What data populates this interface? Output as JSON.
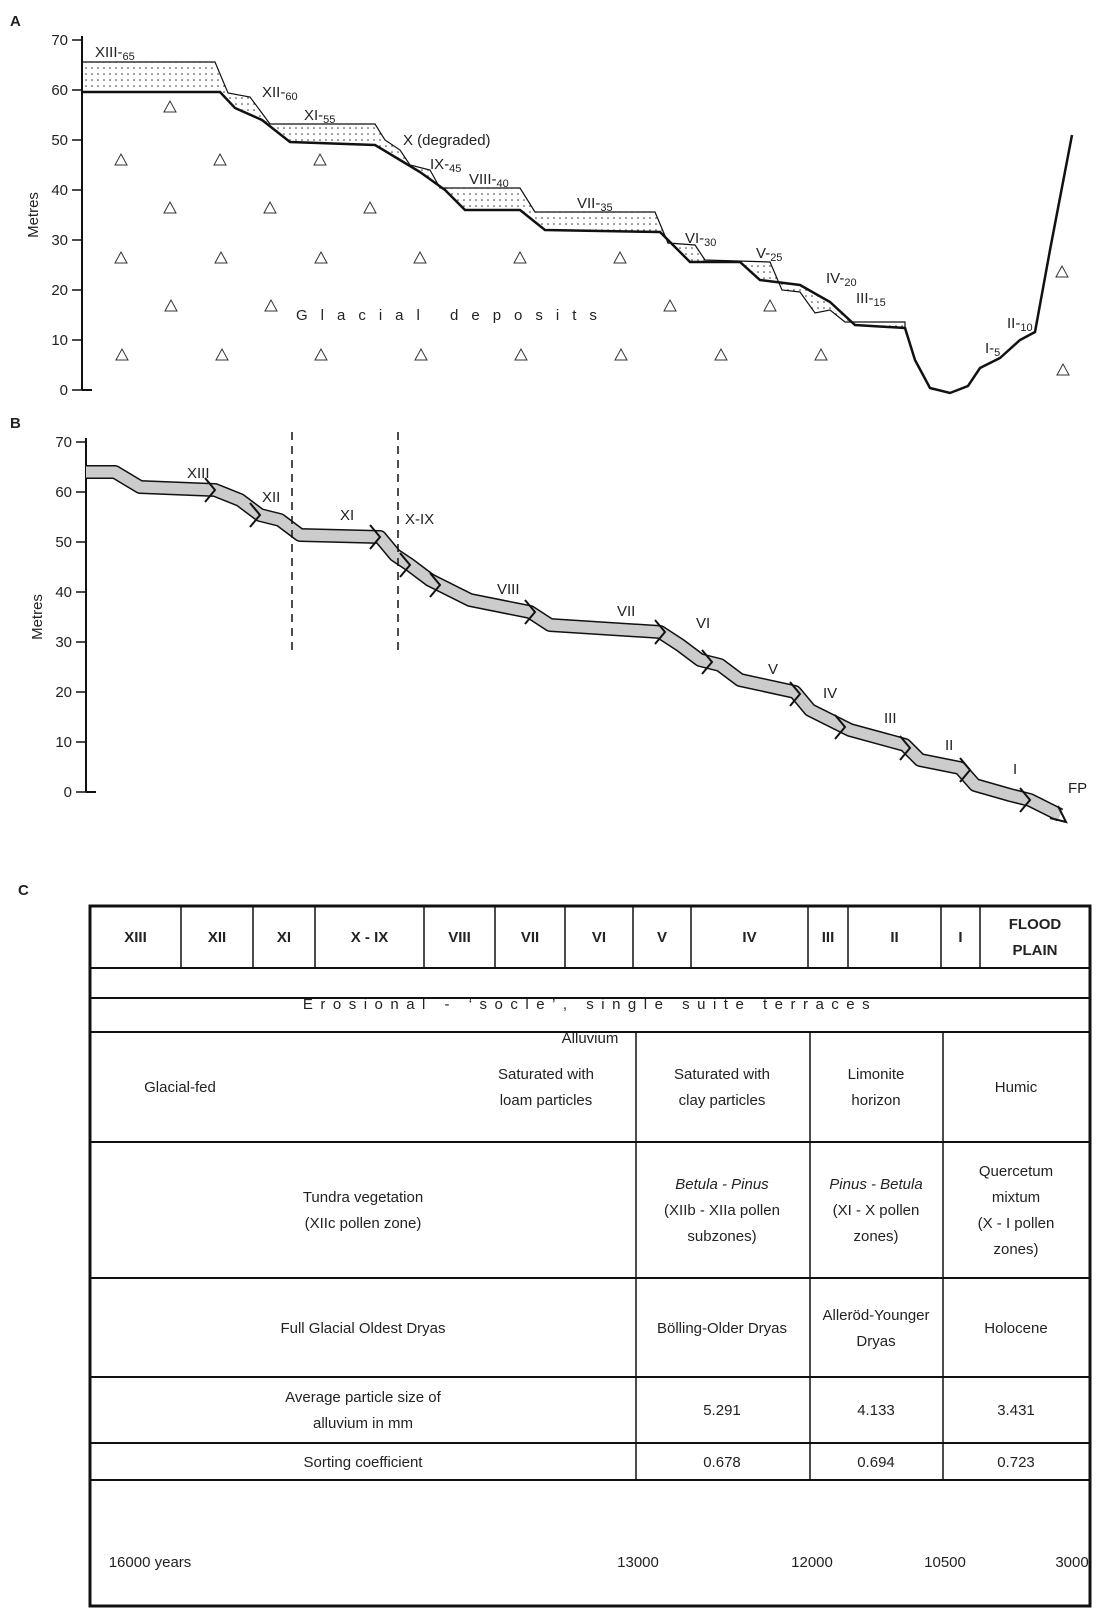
{
  "panel_a": {
    "letter": "A",
    "y_label": "Metres",
    "yticks": [
      0,
      10,
      20,
      30,
      40,
      50,
      60,
      70
    ],
    "terraces": [
      {
        "name": "XIII-",
        "sub": "65"
      },
      {
        "name": "XII-",
        "sub": "60"
      },
      {
        "name": "XI-",
        "sub": "55"
      },
      {
        "name": "X (degraded)"
      },
      {
        "name": "IX-",
        "sub": "45"
      },
      {
        "name": "VIII-",
        "sub": "40"
      },
      {
        "name": "VII-",
        "sub": "35"
      },
      {
        "name": "VI-",
        "sub": "30"
      },
      {
        "name": "V-",
        "sub": "25"
      },
      {
        "name": "IV-",
        "sub": "20"
      },
      {
        "name": "III-",
        "sub": "15"
      },
      {
        "name": "I-",
        "sub": "5"
      },
      {
        "name": "II-",
        "sub": "10"
      }
    ],
    "deposits": "Glacial deposits"
  },
  "panel_b": {
    "letter": "B",
    "y_label": "Metres",
    "yticks": [
      0,
      10,
      20,
      30,
      40,
      50,
      60,
      70
    ],
    "terraces": [
      "XIII",
      "XII",
      "XI",
      "X-IX",
      "VIII",
      "VII",
      "VI",
      "V",
      "IV",
      "III",
      "II",
      "I",
      "FP"
    ]
  },
  "panel_c": {
    "letter": "C",
    "header": [
      "XIII",
      "XII",
      "XI",
      "X - IX",
      "VIII",
      "VII",
      "VI",
      "V",
      "IV",
      "III",
      "II",
      "I",
      [
        "FLOOD",
        "PLAIN"
      ]
    ],
    "process": "Erosional - ‘socle’, single suite terraces",
    "material": "Alluvium",
    "rows": [
      [
        "Glacial-fed",
        [
          "Saturated with",
          "loam particles"
        ],
        [
          "Saturated with",
          "clay particles"
        ],
        [
          "Limonite",
          "horizon"
        ],
        "Humic"
      ],
      [
        [
          "Tundra vegetation",
          "(XIIc pollen zone)"
        ],
        [
          "Betula - Pinus",
          "(XIIb - XIIa pollen",
          "subzones)"
        ],
        [
          "Pinus - Betula",
          "(XI - X pollen",
          "zones)"
        ],
        [
          "Quercetum",
          "mixtum",
          "(X - I pollen",
          "zones)"
        ]
      ],
      [
        "Full Glacial Oldest Dryas",
        "Bölling-Older Dryas",
        [
          "Alleröd-Younger",
          "Dryas"
        ],
        "Holocene"
      ],
      [
        [
          "Average particle size of",
          "alluvium in mm"
        ],
        "5.291",
        "4.133",
        "3.431"
      ],
      [
        "Sorting coefficient",
        "0.678",
        "0.694",
        "0.723"
      ]
    ],
    "timeline": [
      "16000 years",
      "13000",
      "12000",
      "10500",
      "3000"
    ]
  }
}
